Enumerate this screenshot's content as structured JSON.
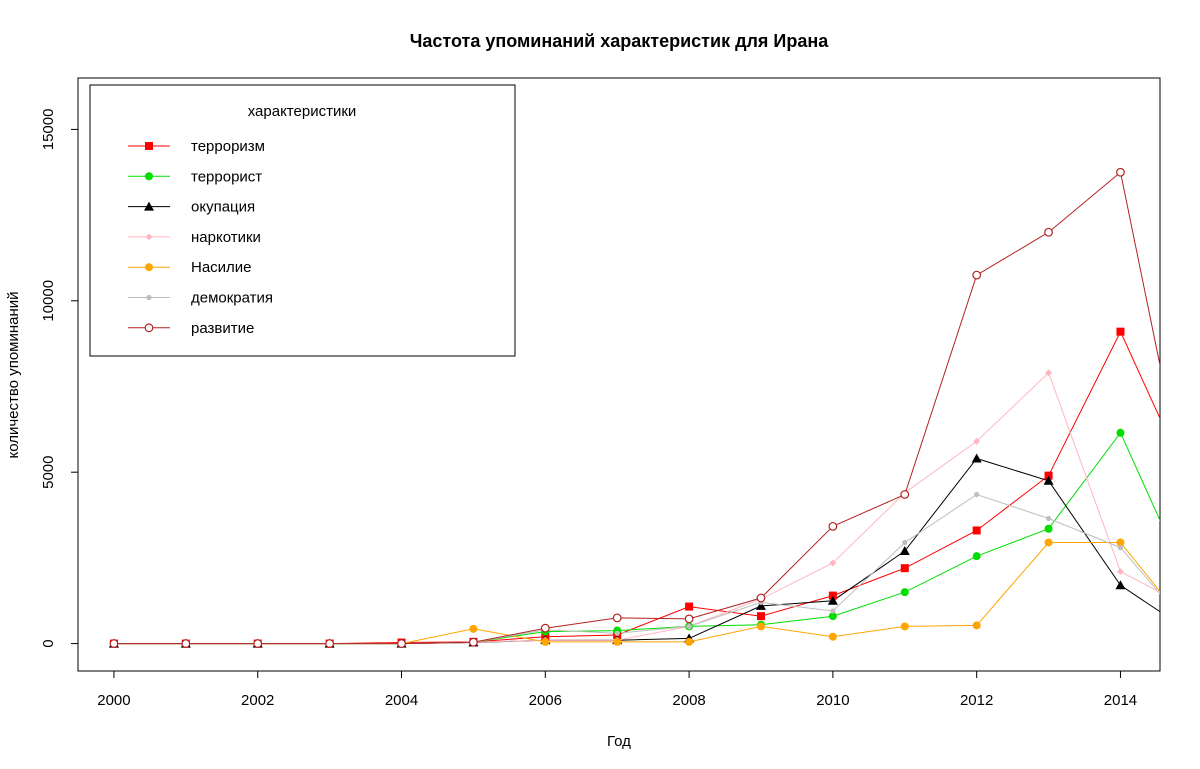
{
  "chart_data": {
    "type": "line",
    "title": "Частота упоминаний характеристик для Ирана",
    "xlabel": "Год",
    "ylabel": "количество упоминаний",
    "xlim": [
      1999.5,
      2014.55
    ],
    "ylim": [
      -800,
      16500
    ],
    "x_ticks": [
      "2000",
      "2002",
      "2004",
      "2006",
      "2008",
      "2010",
      "2012",
      "2014"
    ],
    "y_ticks": [
      "0",
      "5000",
      "10000",
      "15000"
    ],
    "x": [
      2000,
      2001,
      2002,
      2003,
      2004,
      2005,
      2006,
      2007,
      2008,
      2009,
      2010,
      2011,
      2012,
      2013,
      2014,
      2015
    ],
    "grid": false,
    "legend": {
      "title": "характеристики",
      "position": "top-left"
    },
    "series": [
      {
        "name": "терроризм",
        "color": "#ff0000",
        "marker": "square-filled",
        "values": [
          0,
          0,
          0,
          0,
          30,
          50,
          200,
          250,
          1080,
          800,
          1400,
          2200,
          3300,
          4900,
          9100,
          4500
        ]
      },
      {
        "name": "террорист",
        "color": "#00dd00",
        "marker": "circle-filled",
        "values": [
          0,
          0,
          0,
          0,
          0,
          40,
          350,
          380,
          500,
          550,
          800,
          1500,
          2550,
          3350,
          6150,
          1500
        ]
      },
      {
        "name": "окупация",
        "color": "#000000",
        "marker": "triangle-filled",
        "values": [
          0,
          0,
          0,
          0,
          0,
          30,
          100,
          100,
          150,
          1100,
          1250,
          2700,
          5400,
          4750,
          1700,
          300
        ]
      },
      {
        "name": "наркотики",
        "color": "#ffb6c1",
        "marker": "diamond-filled",
        "values": [
          0,
          0,
          0,
          0,
          0,
          40,
          100,
          100,
          500,
          1300,
          2350,
          4400,
          5900,
          7900,
          2100,
          1000
        ]
      },
      {
        "name": "Насилие",
        "color": "#ffa500",
        "marker": "circle-filled",
        "values": [
          0,
          0,
          0,
          0,
          0,
          430,
          50,
          50,
          50,
          500,
          200,
          500,
          530,
          2950,
          2950,
          350
        ]
      },
      {
        "name": "демократия",
        "color": "#bebebe",
        "marker": "circle-small",
        "values": [
          0,
          0,
          0,
          0,
          0,
          40,
          400,
          300,
          500,
          1200,
          950,
          2950,
          4350,
          3650,
          2800,
          350
        ]
      },
      {
        "name": "развитие",
        "color": "#b22222",
        "marker": "circle-open",
        "values": [
          0,
          0,
          0,
          0,
          0,
          40,
          450,
          750,
          720,
          1330,
          3420,
          4350,
          10750,
          12000,
          13750,
          3500
        ]
      }
    ]
  }
}
